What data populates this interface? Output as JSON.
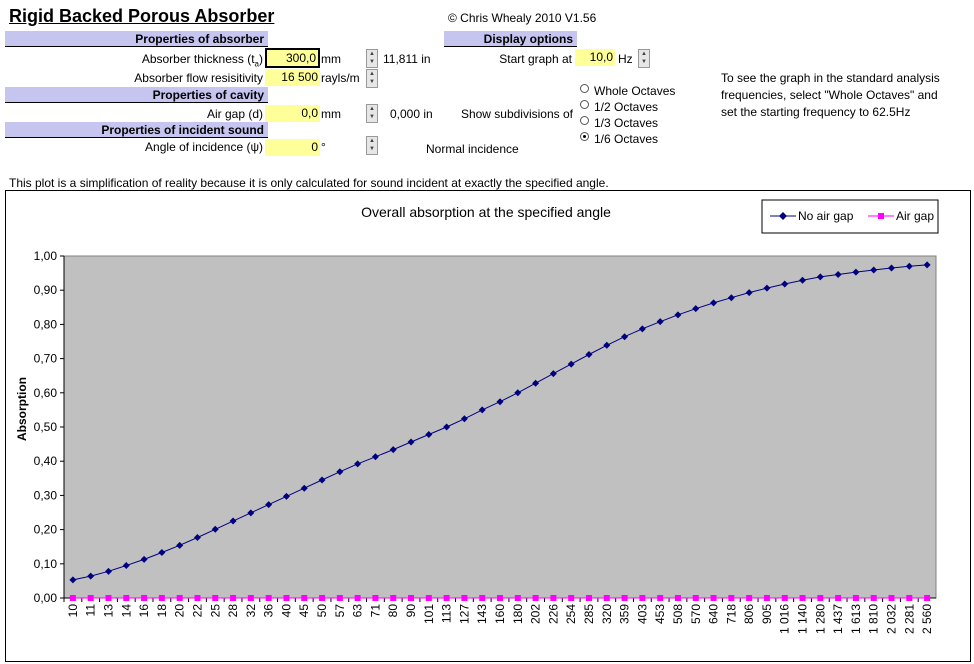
{
  "app": {
    "title": "Rigid Backed Porous Absorber",
    "copyright": "© Chris Whealy 2010  V1.56"
  },
  "sections": {
    "absorber": "Properties of absorber",
    "cavity": "Properties of cavity",
    "incident": "Properties of incident sound",
    "display": "Display options"
  },
  "absorber": {
    "thickness_label": "Absorber thickness (t",
    "thickness_sub": "a",
    "thickness_value": "300,0",
    "thickness_unit": "mm",
    "thickness_in": "11,811  in",
    "resistivity_label": "Absorber flow resisitivity",
    "resistivity_value": "16 500",
    "resistivity_unit": "rayls/m"
  },
  "cavity": {
    "airgap_label": "Air gap (d)",
    "airgap_value": "0,0",
    "airgap_unit": "mm",
    "airgap_in": "0,000  in"
  },
  "incident": {
    "angle_label": "Angle of incidence (ψ)",
    "angle_value": "0",
    "angle_unit": "°",
    "incidence_note": "Normal incidence"
  },
  "display": {
    "start_label": "Start graph at",
    "start_value": "10,0",
    "start_unit": "Hz",
    "subdiv_label": "Show subdivisions of",
    "options": [
      "Whole Octaves",
      "1/2 Octaves",
      "1/3 Octaves",
      "1/6 Octaves"
    ],
    "selected_index": 3
  },
  "note": "To see the graph in the standard analysis frequencies, select \"Whole Octaves\" and set the starting frequency to 62.5Hz",
  "simplification": "This plot is a simplification of reality because it is only calculated for sound incident at exactly the specified angle.",
  "chart_data": {
    "type": "line",
    "title": "Overall absorption at the specified angle",
    "ylabel": "Absorption",
    "ylim": [
      0,
      1
    ],
    "yticks": [
      "0,00",
      "0,10",
      "0,20",
      "0,30",
      "0,40",
      "0,50",
      "0,60",
      "0,70",
      "0,80",
      "0,90",
      "1,00"
    ],
    "legend_position": "top-right",
    "plot_bg": "#c0c0c0",
    "categories": [
      "10",
      "11",
      "13",
      "14",
      "16",
      "18",
      "20",
      "22",
      "25",
      "28",
      "32",
      "36",
      "40",
      "45",
      "50",
      "57",
      "63",
      "71",
      "80",
      "90",
      "101",
      "113",
      "127",
      "143",
      "160",
      "180",
      "202",
      "226",
      "254",
      "285",
      "320",
      "359",
      "403",
      "453",
      "508",
      "570",
      "640",
      "718",
      "806",
      "905",
      "1 016",
      "1 140",
      "1 280",
      "1 437",
      "1 613",
      "1 810",
      "2 032",
      "2 281",
      "2 560"
    ],
    "series": [
      {
        "name": "No air gap",
        "color": "#000080",
        "marker": "diamond",
        "values": [
          0.053,
          0.064,
          0.078,
          0.095,
          0.113,
          0.133,
          0.154,
          0.177,
          0.201,
          0.225,
          0.249,
          0.273,
          0.297,
          0.321,
          0.345,
          0.369,
          0.392,
          0.413,
          0.434,
          0.456,
          0.478,
          0.5,
          0.524,
          0.55,
          0.574,
          0.6,
          0.628,
          0.656,
          0.684,
          0.712,
          0.739,
          0.764,
          0.787,
          0.808,
          0.828,
          0.846,
          0.863,
          0.878,
          0.893,
          0.906,
          0.918,
          0.929,
          0.939,
          0.946,
          0.953,
          0.959,
          0.965,
          0.97,
          0.974
        ]
      },
      {
        "name": "Air gap",
        "color": "#ff00ff",
        "marker": "square",
        "values": [
          0,
          0,
          0,
          0,
          0,
          0,
          0,
          0,
          0,
          0,
          0,
          0,
          0,
          0,
          0,
          0,
          0,
          0,
          0,
          0,
          0,
          0,
          0,
          0,
          0,
          0,
          0,
          0,
          0,
          0,
          0,
          0,
          0,
          0,
          0,
          0,
          0,
          0,
          0,
          0,
          0,
          0,
          0,
          0,
          0,
          0,
          0,
          0,
          0
        ]
      }
    ]
  }
}
